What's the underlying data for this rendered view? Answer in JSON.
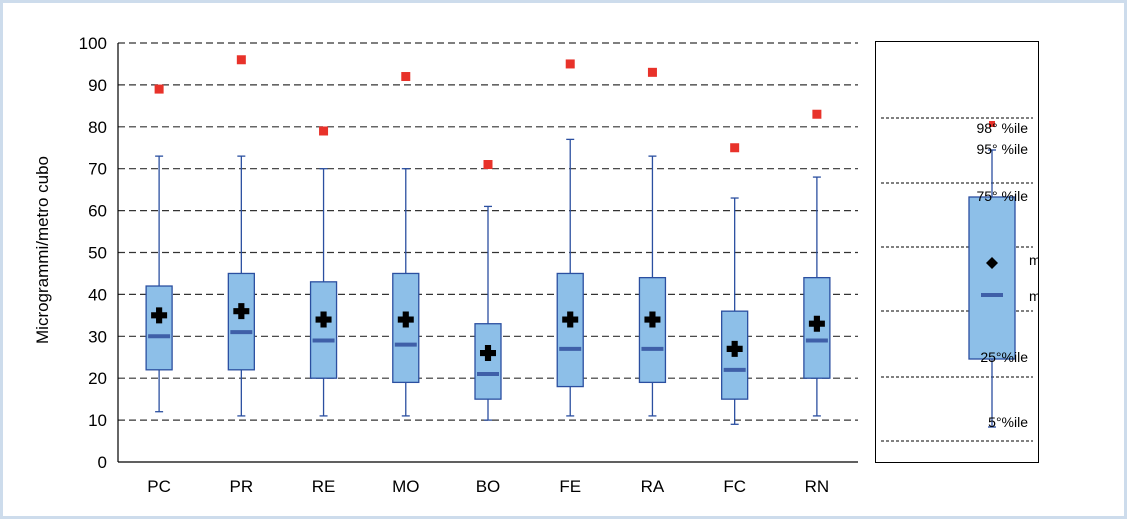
{
  "chart_data": {
    "type": "box",
    "ylabel": "Microgrammi/metro cubo",
    "ylim": [
      0,
      100
    ],
    "yticks": [
      0,
      10,
      20,
      30,
      40,
      50,
      60,
      70,
      80,
      90,
      100
    ],
    "grid": true,
    "categories": [
      "PC",
      "PR",
      "RE",
      "MO",
      "BO",
      "FE",
      "RA",
      "FC",
      "RN"
    ],
    "boxes": [
      {
        "category": "PC",
        "p5": 12,
        "p25": 22,
        "median": 30,
        "mean": 35,
        "p75": 42,
        "p95": 73,
        "p98": 89
      },
      {
        "category": "PR",
        "p5": 11,
        "p25": 22,
        "median": 31,
        "mean": 36,
        "p75": 45,
        "p95": 73,
        "p98": 96
      },
      {
        "category": "RE",
        "p5": 11,
        "p25": 20,
        "median": 29,
        "mean": 34,
        "p75": 43,
        "p95": 70,
        "p98": 79
      },
      {
        "category": "MO",
        "p5": 11,
        "p25": 19,
        "median": 28,
        "mean": 34,
        "p75": 45,
        "p95": 70,
        "p98": 92
      },
      {
        "category": "BO",
        "p5": 10,
        "p25": 15,
        "median": 21,
        "mean": 26,
        "p75": 33,
        "p95": 61,
        "p98": 71
      },
      {
        "category": "FE",
        "p5": 11,
        "p25": 18,
        "median": 27,
        "mean": 34,
        "p75": 45,
        "p95": 77,
        "p98": 95
      },
      {
        "category": "RA",
        "p5": 11,
        "p25": 19,
        "median": 27,
        "mean": 34,
        "p75": 44,
        "p95": 73,
        "p98": 93
      },
      {
        "category": "FC",
        "p5": 9,
        "p25": 15,
        "median": 22,
        "mean": 27,
        "p75": 36,
        "p95": 63,
        "p98": 75
      },
      {
        "category": "RN",
        "p5": 11,
        "p25": 20,
        "median": 29,
        "mean": 33,
        "p75": 44,
        "p95": 68,
        "p98": 83
      }
    ],
    "colors": {
      "box_fill": "#8dbfe8",
      "box_stroke": "#2b4fa0",
      "median": "#3f5fa8",
      "mean": "#000000",
      "p98": "#e8322a",
      "grid": "#333333"
    },
    "legend": {
      "labels": {
        "p98": "98° %ile",
        "p95": "95° %ile",
        "p75": "75° %ile",
        "mean": "media",
        "median": "mediana",
        "p25": "25°%ile",
        "p5": "5°%ile"
      }
    }
  }
}
